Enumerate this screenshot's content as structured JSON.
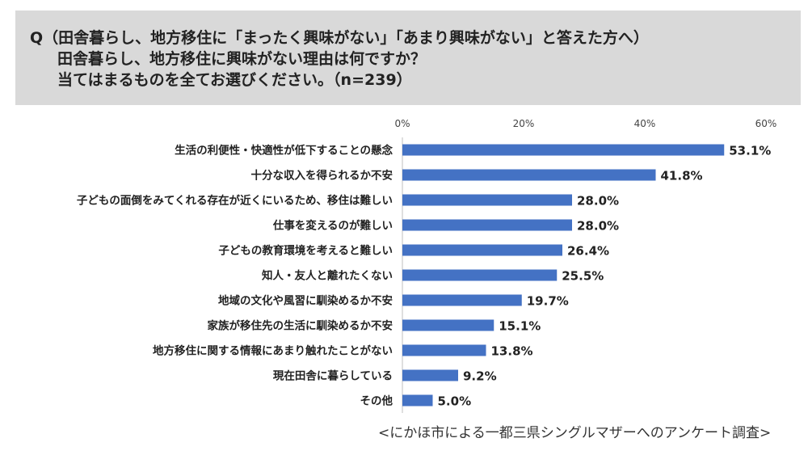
{
  "question": {
    "line1": "Q（田舎暮らし、地方移住に「まったく興味がない」「あまり興味がない」と答えた方へ）",
    "line2": "田舎暮らし、地方移住に興味がない理由は何ですか？",
    "line3": "当てはまるものを全てお選びください。（n=239）"
  },
  "source": "<にかほ市による一都三県シングルマザーへのアンケート調査>",
  "colors": {
    "bar": "#4472c4",
    "question_bg": "#d9d9d9"
  },
  "chart_data": {
    "type": "bar",
    "orientation": "horizontal",
    "xlim": [
      0,
      60
    ],
    "ticks": [
      "0%",
      "20%",
      "40%",
      "60%"
    ],
    "tick_values": [
      0,
      20,
      40,
      60
    ],
    "categories": [
      "生活の利便性・快適性が低下することの懸念",
      "十分な収入を得られるか不安",
      "子どもの面倒をみてくれる存在が近くにいるため、移住は難しい",
      "仕事を変えるのが難しい",
      "子どもの教育環境を考えると難しい",
      "知人・友人と離れたくない",
      "地域の文化や風習に馴染めるか不安",
      "家族が移住先の生活に馴染めるか不安",
      "地方移住に関する情報にあまり触れたことがない",
      "現在田舎に暮らしている",
      "その他"
    ],
    "values": [
      53.1,
      41.8,
      28.0,
      28.0,
      26.4,
      25.5,
      19.7,
      15.1,
      13.8,
      9.2,
      5.0
    ],
    "data_labels": [
      "53.1%",
      "41.8%",
      "28.0%",
      "28.0%",
      "26.4%",
      "25.5%",
      "19.7%",
      "15.1%",
      "13.8%",
      "9.2%",
      "5.0%"
    ],
    "grid": false,
    "legend": "none"
  }
}
